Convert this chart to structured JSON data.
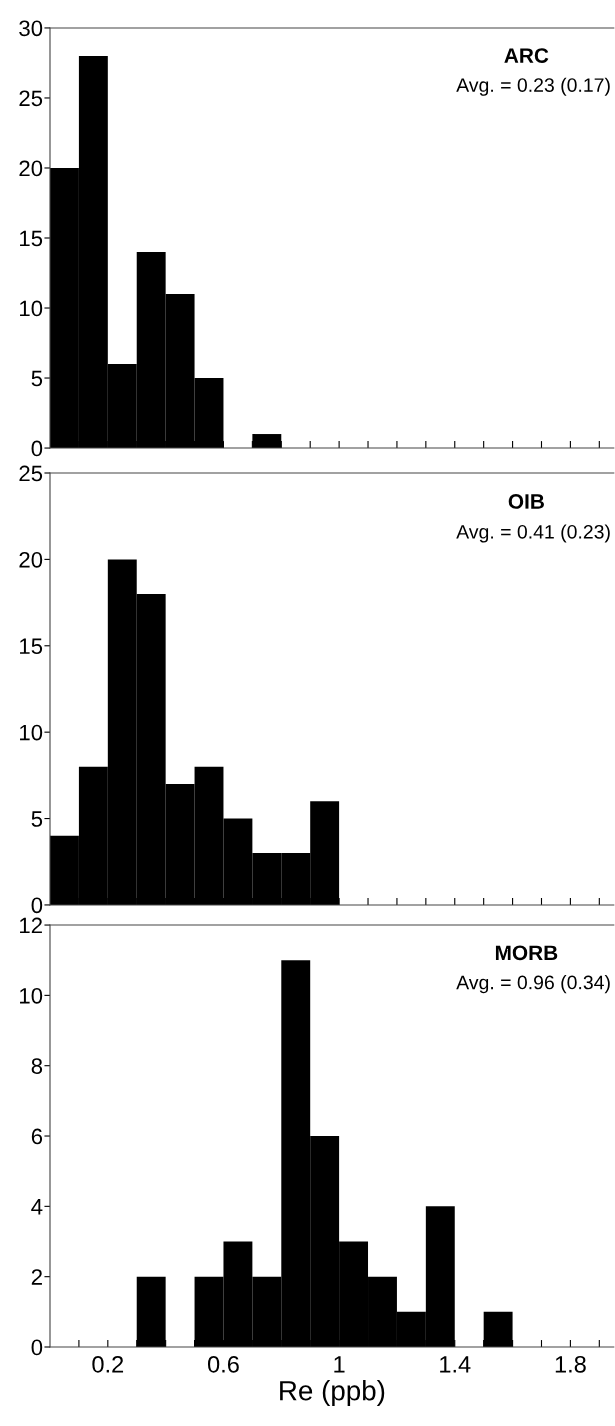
{
  "chart_data": [
    {
      "type": "histogram",
      "title": "ARC",
      "subtitle": "Avg. = 0.23 (0.17)",
      "bins": [
        0,
        0.1,
        0.2,
        0.3,
        0.4,
        0.5,
        0.6,
        0.7,
        0.8
      ],
      "values": [
        20,
        28,
        6,
        14,
        11,
        5,
        0,
        1
      ],
      "color": "#000000",
      "xlim": [
        0,
        1.95
      ],
      "ylim": [
        0,
        30
      ],
      "yticks": [
        0,
        5,
        10,
        15,
        20,
        25,
        30
      ],
      "xticks": [
        {
          "value": 0.1,
          "label": null
        },
        {
          "value": 0.2,
          "label": null
        },
        {
          "value": 0.3,
          "label": null
        },
        {
          "value": 0.4,
          "label": null
        },
        {
          "value": 0.5,
          "label": null
        },
        {
          "value": 0.6,
          "label": null
        },
        {
          "value": 0.7,
          "label": null
        },
        {
          "value": 0.8,
          "label": null
        },
        {
          "value": 0.9,
          "label": null
        },
        {
          "value": 1.0,
          "label": null
        },
        {
          "value": 1.1,
          "label": null
        },
        {
          "value": 1.2,
          "label": null
        },
        {
          "value": 1.3,
          "label": null
        },
        {
          "value": 1.4,
          "label": null
        },
        {
          "value": 1.5,
          "label": null
        },
        {
          "value": 1.6,
          "label": null
        },
        {
          "value": 1.7,
          "label": null
        },
        {
          "value": 1.8,
          "label": null
        },
        {
          "value": 1.9,
          "label": null
        }
      ],
      "tick_labels": "y",
      "grid": false
    },
    {
      "type": "histogram",
      "title": "OIB",
      "subtitle": "Avg. = 0.41 (0.23)",
      "bins": [
        0,
        0.1,
        0.2,
        0.3,
        0.4,
        0.5,
        0.6,
        0.7,
        0.8,
        0.9,
        1.0
      ],
      "values": [
        4,
        8,
        20,
        18,
        7,
        8,
        5,
        3,
        3,
        6
      ],
      "color": "#000000",
      "xlim": [
        0,
        1.95
      ],
      "ylim": [
        0,
        25
      ],
      "yticks": [
        0,
        5,
        10,
        15,
        20,
        25
      ],
      "xticks": [
        {
          "value": 0.1,
          "label": null
        },
        {
          "value": 0.2,
          "label": null
        },
        {
          "value": 0.3,
          "label": null
        },
        {
          "value": 0.4,
          "label": null
        },
        {
          "value": 0.5,
          "label": null
        },
        {
          "value": 0.6,
          "label": null
        },
        {
          "value": 0.7,
          "label": null
        },
        {
          "value": 0.8,
          "label": null
        },
        {
          "value": 0.9,
          "label": null
        },
        {
          "value": 1.0,
          "label": null
        },
        {
          "value": 1.1,
          "label": null
        },
        {
          "value": 1.2,
          "label": null
        },
        {
          "value": 1.3,
          "label": null
        },
        {
          "value": 1.4,
          "label": null
        },
        {
          "value": 1.5,
          "label": null
        },
        {
          "value": 1.6,
          "label": null
        },
        {
          "value": 1.7,
          "label": null
        },
        {
          "value": 1.8,
          "label": null
        },
        {
          "value": 1.9,
          "label": null
        }
      ],
      "tick_labels": "y",
      "grid": false
    },
    {
      "type": "histogram",
      "title": "MORB",
      "subtitle": "Avg. = 0.96 (0.34)",
      "xlabel": "Re (ppb)",
      "bins": [
        0.3,
        0.4,
        0.5,
        0.6,
        0.7,
        0.8,
        0.9,
        1.0,
        1.1,
        1.2,
        1.3,
        1.4,
        1.5,
        1.6
      ],
      "values": [
        2,
        0,
        2,
        3,
        2,
        11,
        6,
        3,
        2,
        1,
        4,
        0,
        1
      ],
      "color": "#000000",
      "xlim": [
        0,
        1.95
      ],
      "ylim": [
        0,
        12
      ],
      "yticks": [
        0,
        2,
        4,
        6,
        8,
        10,
        12
      ],
      "xticks": [
        {
          "value": 0.1,
          "label": null
        },
        0.2,
        {
          "value": 0.3,
          "label": null
        },
        {
          "value": 0.4,
          "label": null
        },
        {
          "value": 0.5,
          "label": null
        },
        0.6,
        {
          "value": 0.7,
          "label": null
        },
        {
          "value": 0.8,
          "label": null
        },
        {
          "value": 0.9,
          "label": null
        },
        1,
        {
          "value": 1.1,
          "label": null
        },
        {
          "value": 1.2,
          "label": null
        },
        {
          "value": 1.3,
          "label": null
        },
        1.4,
        {
          "value": 1.5,
          "label": null
        },
        {
          "value": 1.6,
          "label": null
        },
        {
          "value": 1.7,
          "label": null
        },
        1.8,
        {
          "value": 1.9,
          "label": null
        }
      ],
      "grid": false
    }
  ]
}
